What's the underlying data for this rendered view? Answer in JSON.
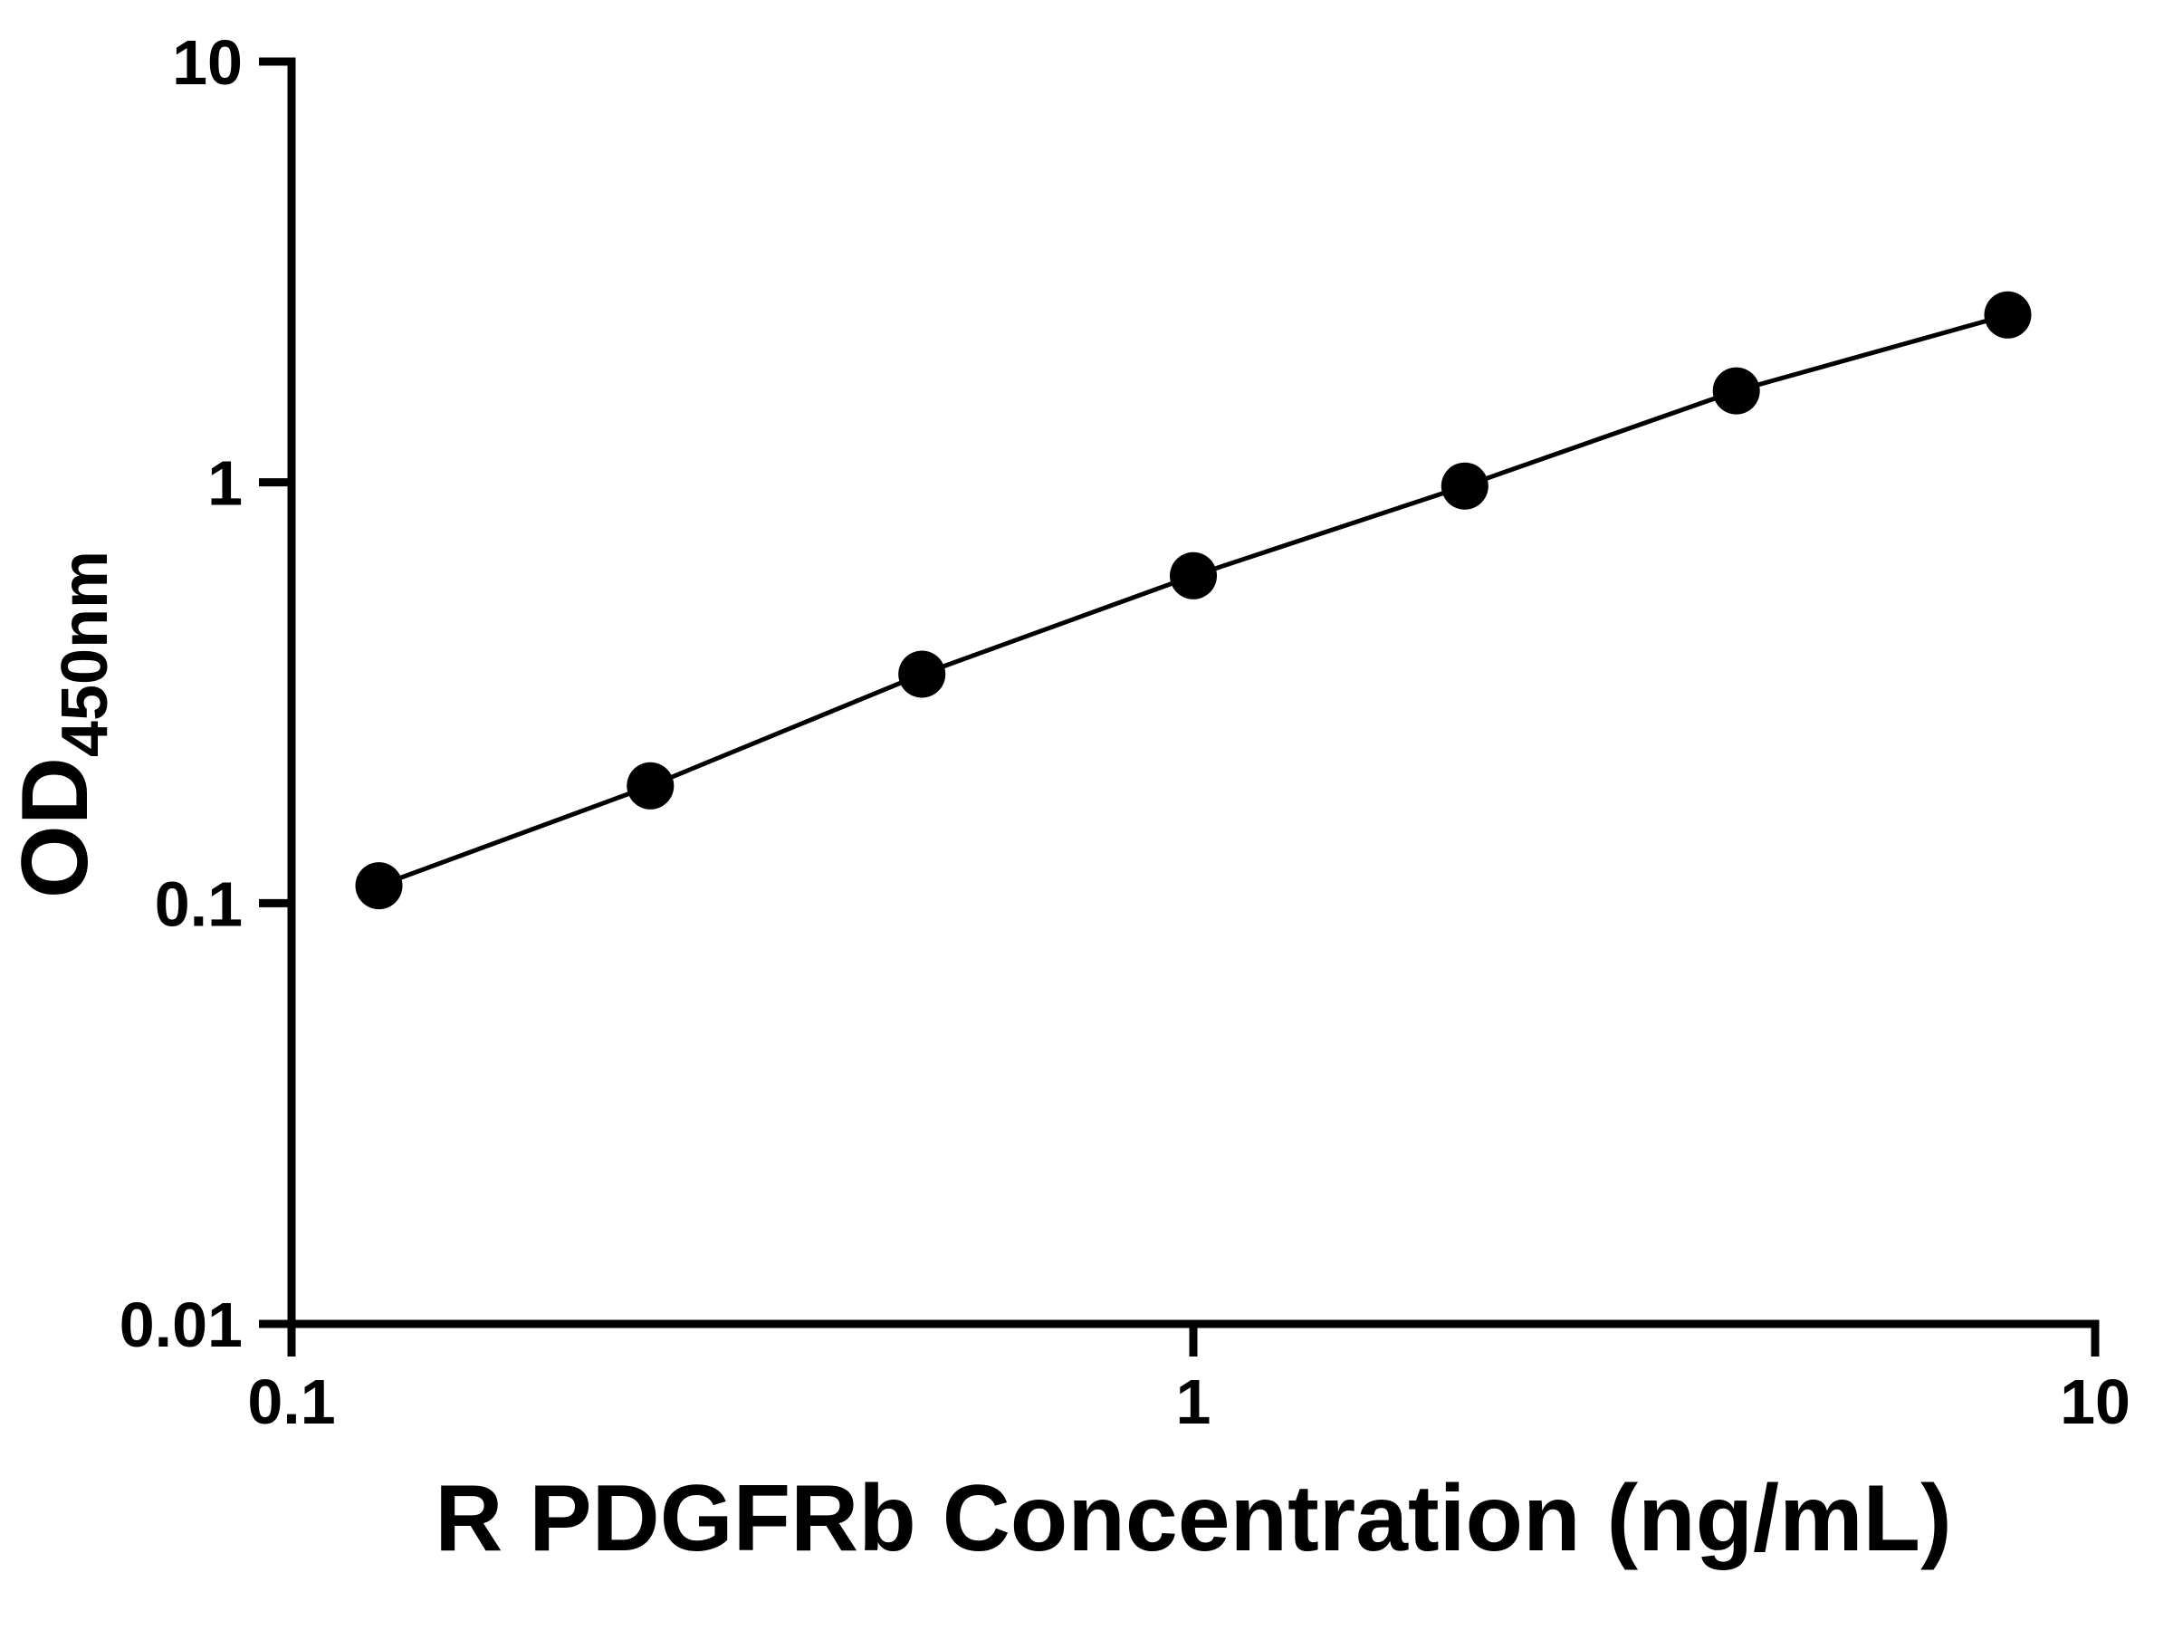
{
  "page": {
    "background": "#ffffff"
  },
  "chart_data": {
    "type": "scatter",
    "subtype": "standard-curve-line",
    "title": "",
    "xlabel": "R PDGFRb Concentration (ng/mL)",
    "ylabel": "OD450nm",
    "ylabel_main": "OD",
    "ylabel_sub": "450nm",
    "x_scale": "log",
    "y_scale": "log",
    "xlim": [
      0.1,
      10
    ],
    "ylim": [
      0.01,
      10
    ],
    "x": [
      0.125,
      0.25,
      0.5,
      1,
      2,
      4,
      8
    ],
    "y": [
      0.11,
      0.19,
      0.35,
      0.6,
      0.98,
      1.65,
      2.5
    ],
    "x_ticks": [
      {
        "value": 0.1,
        "label": "0.1"
      },
      {
        "value": 1,
        "label": "1"
      },
      {
        "value": 10,
        "label": "10"
      }
    ],
    "y_ticks": [
      {
        "value": 0.01,
        "label": "0.01"
      },
      {
        "value": 0.1,
        "label": "0.1"
      },
      {
        "value": 1,
        "label": "1"
      },
      {
        "value": 10,
        "label": "10"
      }
    ],
    "grid": false,
    "legend": null,
    "marker_color": "#000000",
    "line_color": "#000000",
    "axis_color": "#000000"
  }
}
